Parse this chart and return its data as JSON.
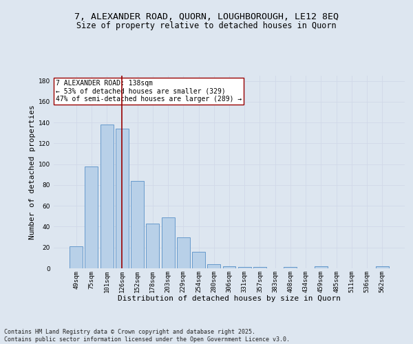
{
  "title_line1": "7, ALEXANDER ROAD, QUORN, LOUGHBOROUGH, LE12 8EQ",
  "title_line2": "Size of property relative to detached houses in Quorn",
  "xlabel": "Distribution of detached houses by size in Quorn",
  "ylabel": "Number of detached properties",
  "categories": [
    "49sqm",
    "75sqm",
    "101sqm",
    "126sqm",
    "152sqm",
    "178sqm",
    "203sqm",
    "229sqm",
    "254sqm",
    "280sqm",
    "306sqm",
    "331sqm",
    "357sqm",
    "383sqm",
    "408sqm",
    "434sqm",
    "459sqm",
    "485sqm",
    "511sqm",
    "536sqm",
    "562sqm"
  ],
  "values": [
    21,
    98,
    138,
    134,
    84,
    43,
    49,
    30,
    16,
    4,
    2,
    1,
    1,
    0,
    1,
    0,
    2,
    0,
    0,
    0,
    2
  ],
  "bar_color": "#b8d0e8",
  "bar_edge_color": "#6699cc",
  "vline_x_index": 3,
  "vline_color": "#990000",
  "annotation_text": "7 ALEXANDER ROAD: 138sqm\n← 53% of detached houses are smaller (329)\n47% of semi-detached houses are larger (289) →",
  "annotation_box_color": "#ffffff",
  "annotation_box_edge_color": "#990000",
  "ylim": [
    0,
    185
  ],
  "yticks": [
    0,
    20,
    40,
    60,
    80,
    100,
    120,
    140,
    160,
    180
  ],
  "grid_color": "#d0d8e8",
  "bg_color": "#dde6f0",
  "footer_line1": "Contains HM Land Registry data © Crown copyright and database right 2025.",
  "footer_line2": "Contains public sector information licensed under the Open Government Licence v3.0.",
  "title_fontsize": 9.5,
  "subtitle_fontsize": 8.5,
  "axis_label_fontsize": 8,
  "tick_fontsize": 6.5,
  "annotation_fontsize": 7,
  "footer_fontsize": 6
}
